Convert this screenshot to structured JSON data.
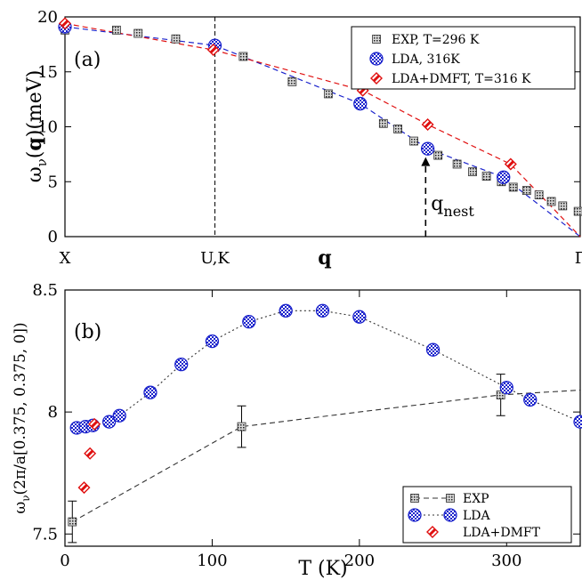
{
  "chart_data": [
    {
      "type": "scatter",
      "panel_label": "(a)",
      "xlabel": "q",
      "ylabel_parts": [
        "ω",
        "ν",
        "(",
        "q",
        ")(meV)"
      ],
      "ylim": [
        0,
        20
      ],
      "xlim": [
        0,
        1
      ],
      "yticks": [
        0,
        5,
        10,
        15,
        20
      ],
      "xticks": [
        {
          "x": 0,
          "label": "X"
        },
        {
          "x": 0.291,
          "label": "U,K"
        },
        {
          "x": 1,
          "label": "Γ"
        }
      ],
      "vline_x": 0.291,
      "annotation": {
        "text": "q",
        "sub": "nest",
        "x": 0.7,
        "y_from": 0,
        "y_to": 7.4
      },
      "legend_position": "top-right",
      "series": [
        {
          "name": "EXP, T=296 K",
          "marker": "square-dotted",
          "x": [
            0.0,
            0.1,
            0.142,
            0.215,
            0.291,
            0.346,
            0.441,
            0.511,
            0.573,
            0.618,
            0.646,
            0.677,
            0.704,
            0.724,
            0.761,
            0.791,
            0.818,
            0.847,
            0.87,
            0.896,
            0.92,
            0.944,
            0.966,
            0.996
          ],
          "y": [
            18.8,
            18.8,
            18.5,
            18.0,
            17.4,
            16.4,
            14.1,
            13.0,
            12.2,
            10.3,
            9.8,
            8.7,
            8.1,
            7.4,
            6.6,
            5.9,
            5.5,
            5.0,
            4.5,
            4.2,
            3.8,
            3.2,
            2.8,
            2.3
          ]
        },
        {
          "name": "LDA, 316K",
          "marker": "circle-checker",
          "x": [
            0.0,
            0.291,
            0.573,
            0.704,
            0.851
          ],
          "y": [
            19.1,
            17.4,
            12.1,
            8.0,
            5.4
          ]
        },
        {
          "name": "LDA+DMFT, T=316 K",
          "marker": "diamond-red",
          "x": [
            0.0,
            0.288,
            0.578,
            0.704,
            0.865
          ],
          "y": [
            19.4,
            17.0,
            13.3,
            10.2,
            6.6
          ]
        }
      ]
    },
    {
      "type": "scatter",
      "panel_label": "(b)",
      "xlabel": "T (K)",
      "ylabel_parts": [
        "ω",
        "ν",
        "(2π/a[0.375, 0.375, 0])"
      ],
      "xlim": [
        0,
        350
      ],
      "ylim": [
        7.45,
        8.5
      ],
      "xticks": [
        0,
        100,
        200,
        300
      ],
      "yticks": [
        7.5,
        8,
        8.5
      ],
      "legend_position": "bottom-right",
      "series": [
        {
          "name": "EXP",
          "marker": "square-dotted",
          "x": [
            5,
            120,
            296
          ],
          "y": [
            7.55,
            7.94,
            8.07
          ],
          "yerr": [
            0.085,
            0.085,
            0.085
          ],
          "trend_x": [
            5,
            120,
            200,
            296,
            350
          ],
          "trend_y": [
            7.55,
            7.94,
            8.0,
            8.07,
            8.09
          ]
        },
        {
          "name": "LDA",
          "marker": "circle-checker",
          "x": [
            8,
            14,
            19,
            30,
            37,
            58,
            79,
            100,
            125,
            150,
            175,
            200,
            250,
            300,
            316,
            350
          ],
          "y": [
            7.935,
            7.94,
            7.945,
            7.96,
            7.985,
            8.08,
            8.195,
            8.29,
            8.37,
            8.415,
            8.415,
            8.39,
            8.255,
            8.1,
            8.05,
            7.96
          ]
        },
        {
          "name": "LDA+DMFT",
          "marker": "diamond-red",
          "x": [
            13,
            17,
            20
          ],
          "y": [
            7.69,
            7.83,
            7.95
          ]
        }
      ]
    }
  ]
}
